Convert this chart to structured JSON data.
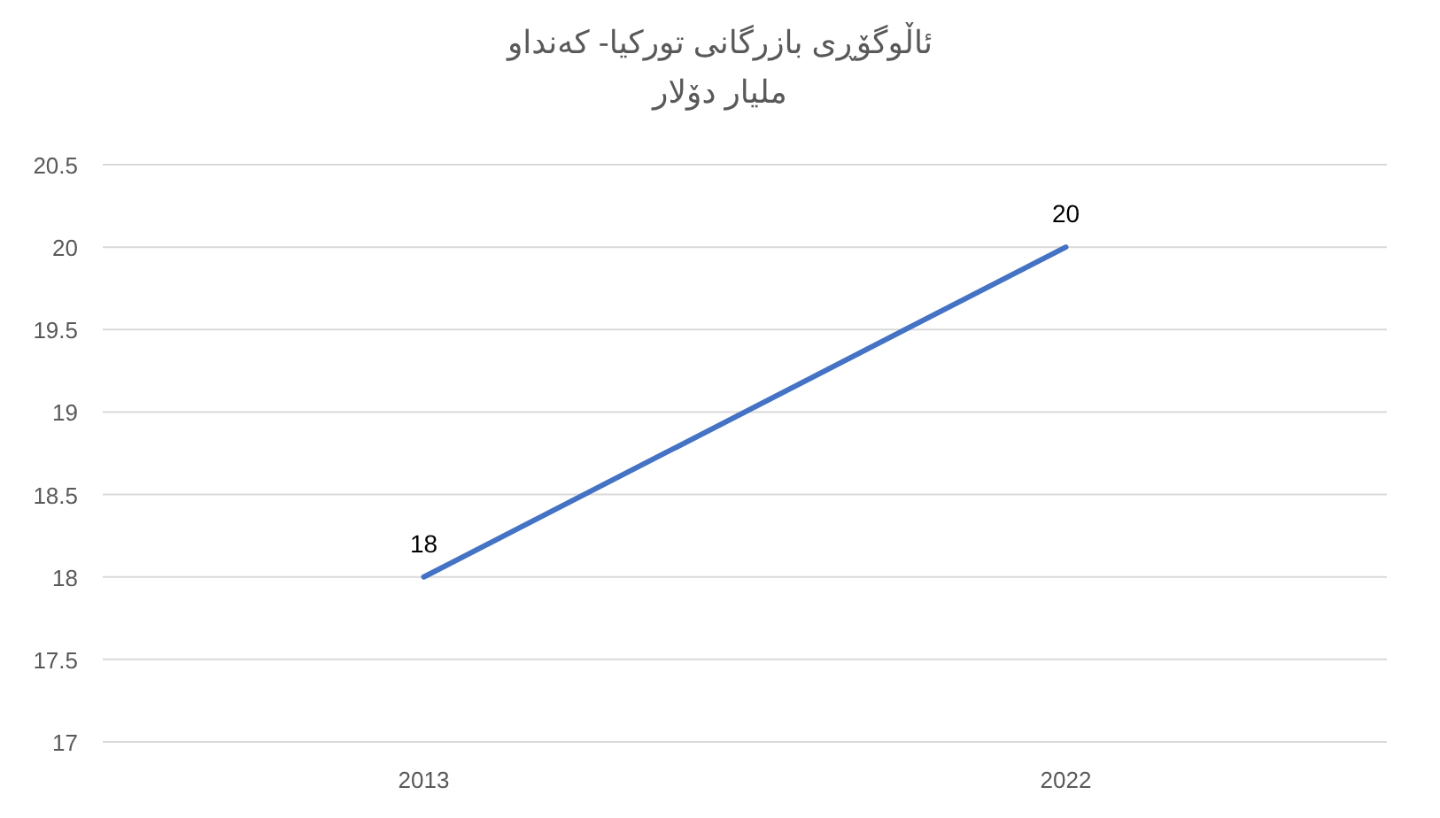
{
  "chart_data": {
    "type": "line",
    "title": "ئاڵوگۆڕی بازرگانی تورکیا- کەنداو",
    "subtitle": "ملیار دۆلار",
    "categories": [
      "2013",
      "2022"
    ],
    "series": [
      {
        "color": "#4472c4",
        "values": [
          18,
          20
        ]
      }
    ],
    "ylim": [
      17,
      20.5
    ],
    "yticks": [
      17,
      17.5,
      18,
      18.5,
      19,
      19.5,
      20,
      20.5
    ],
    "grid": "y",
    "data_labels": true,
    "marker": "none",
    "line_style": "solid"
  }
}
